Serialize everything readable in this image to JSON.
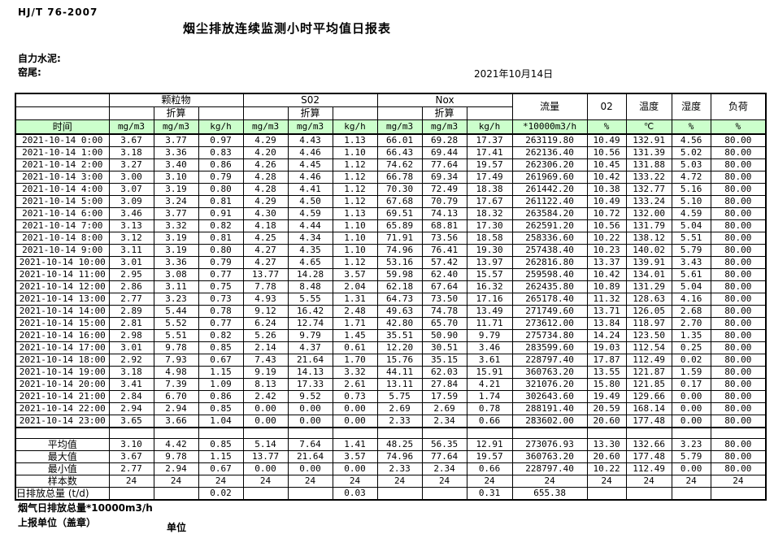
{
  "page": {
    "doc_code": "HJ/T  76-2007",
    "title": "烟尘排放连续监测小时平均值日报表",
    "company": "自力水泥:",
    "location": "窑尾:",
    "date": "2021年10月14日",
    "footer_total_label": "烟气日排放总量*10000m3/h",
    "footer_report_unit": "上报单位（盖章）",
    "footer_unit": "单位"
  },
  "colors": {
    "header_green": "#ccffcc"
  },
  "table": {
    "time_label": "时间",
    "groups": [
      "颗粒物",
      "S02",
      "Nox"
    ],
    "converted_label": "折算",
    "single_headers": [
      "流量",
      "02",
      "温度",
      "湿度",
      "负荷"
    ],
    "units": [
      "mg/m3",
      "mg/m3",
      "kg/h",
      "mg/m3",
      "mg/m3",
      "kg/h",
      "mg/m3",
      "mg/m3",
      "kg/h",
      "*10000m3/h",
      "%",
      "℃",
      "%",
      "%"
    ],
    "rows": [
      {
        "time": "2021-10-14 0:00",
        "values": [
          "3.67",
          "3.77",
          "0.97",
          "4.29",
          "4.43",
          "1.13",
          "66.01",
          "69.28",
          "17.37",
          "263119.80",
          "10.49",
          "132.91",
          "4.56",
          "80.00"
        ]
      },
      {
        "time": "2021-10-14 1:00",
        "values": [
          "3.18",
          "3.36",
          "0.83",
          "4.20",
          "4.46",
          "1.10",
          "66.43",
          "69.44",
          "17.41",
          "262136.40",
          "10.56",
          "131.39",
          "5.02",
          "80.00"
        ]
      },
      {
        "time": "2021-10-14 2:00",
        "values": [
          "3.27",
          "3.40",
          "0.86",
          "4.26",
          "4.45",
          "1.12",
          "74.62",
          "77.64",
          "19.57",
          "262306.20",
          "10.45",
          "131.88",
          "5.03",
          "80.00"
        ]
      },
      {
        "time": "2021-10-14 3:00",
        "values": [
          "3.00",
          "3.10",
          "0.79",
          "4.28",
          "4.46",
          "1.12",
          "66.78",
          "69.34",
          "17.49",
          "261969.60",
          "10.42",
          "133.22",
          "4.72",
          "80.00"
        ]
      },
      {
        "time": "2021-10-14 4:00",
        "values": [
          "3.07",
          "3.19",
          "0.80",
          "4.28",
          "4.41",
          "1.12",
          "70.30",
          "72.49",
          "18.38",
          "261442.20",
          "10.38",
          "132.77",
          "5.16",
          "80.00"
        ]
      },
      {
        "time": "2021-10-14 5:00",
        "values": [
          "3.09",
          "3.24",
          "0.81",
          "4.29",
          "4.50",
          "1.12",
          "67.68",
          "70.79",
          "17.67",
          "261122.40",
          "10.49",
          "133.24",
          "5.10",
          "80.00"
        ]
      },
      {
        "time": "2021-10-14 6:00",
        "values": [
          "3.46",
          "3.77",
          "0.91",
          "4.30",
          "4.59",
          "1.13",
          "69.51",
          "74.13",
          "18.32",
          "263584.20",
          "10.72",
          "132.00",
          "4.59",
          "80.00"
        ]
      },
      {
        "time": "2021-10-14 7:00",
        "values": [
          "3.13",
          "3.32",
          "0.82",
          "4.18",
          "4.44",
          "1.10",
          "65.89",
          "68.81",
          "17.30",
          "262591.20",
          "10.56",
          "131.79",
          "5.04",
          "80.00"
        ]
      },
      {
        "time": "2021-10-14 8:00",
        "values": [
          "3.12",
          "3.19",
          "0.81",
          "4.25",
          "4.34",
          "1.10",
          "71.91",
          "73.56",
          "18.58",
          "258336.60",
          "10.22",
          "138.12",
          "5.51",
          "80.00"
        ]
      },
      {
        "time": "2021-10-14 9:00",
        "values": [
          "3.11",
          "3.19",
          "0.80",
          "4.27",
          "4.35",
          "1.10",
          "74.96",
          "76.41",
          "19.30",
          "257438.40",
          "10.23",
          "140.02",
          "5.79",
          "80.00"
        ]
      },
      {
        "time": "2021-10-14 10:00",
        "values": [
          "3.01",
          "3.36",
          "0.79",
          "4.27",
          "4.65",
          "1.12",
          "53.16",
          "57.42",
          "13.97",
          "262816.80",
          "13.37",
          "139.91",
          "3.43",
          "80.00"
        ]
      },
      {
        "time": "2021-10-14 11:00",
        "values": [
          "2.95",
          "3.08",
          "0.77",
          "13.77",
          "14.28",
          "3.57",
          "59.98",
          "62.40",
          "15.57",
          "259598.40",
          "10.42",
          "134.01",
          "5.61",
          "80.00"
        ]
      },
      {
        "time": "2021-10-14 12:00",
        "values": [
          "2.86",
          "3.11",
          "0.75",
          "7.78",
          "8.48",
          "2.04",
          "62.18",
          "67.64",
          "16.32",
          "262435.80",
          "10.89",
          "131.29",
          "5.04",
          "80.00"
        ]
      },
      {
        "time": "2021-10-14 13:00",
        "values": [
          "2.77",
          "3.23",
          "0.73",
          "4.93",
          "5.55",
          "1.31",
          "64.73",
          "73.50",
          "17.16",
          "265178.40",
          "11.32",
          "128.63",
          "4.16",
          "80.00"
        ]
      },
      {
        "time": "2021-10-14 14:00",
        "values": [
          "2.89",
          "5.44",
          "0.78",
          "9.12",
          "16.42",
          "2.48",
          "49.63",
          "74.78",
          "13.49",
          "271749.60",
          "13.71",
          "126.05",
          "2.68",
          "80.00"
        ]
      },
      {
        "time": "2021-10-14 15:00",
        "values": [
          "2.81",
          "5.52",
          "0.77",
          "6.24",
          "12.74",
          "1.71",
          "42.80",
          "65.70",
          "11.71",
          "273612.00",
          "13.84",
          "118.97",
          "2.70",
          "80.00"
        ]
      },
      {
        "time": "2021-10-14 16:00",
        "values": [
          "2.98",
          "5.51",
          "0.82",
          "5.26",
          "9.79",
          "1.45",
          "35.51",
          "50.90",
          "9.79",
          "275734.80",
          "14.24",
          "123.50",
          "1.35",
          "80.00"
        ]
      },
      {
        "time": "2021-10-14 17:00",
        "values": [
          "3.01",
          "9.78",
          "0.85",
          "2.14",
          "4.37",
          "0.61",
          "12.20",
          "30.51",
          "3.46",
          "283599.60",
          "19.03",
          "112.54",
          "0.25",
          "80.00"
        ]
      },
      {
        "time": "2021-10-14 18:00",
        "values": [
          "2.92",
          "7.93",
          "0.67",
          "7.43",
          "21.64",
          "1.70",
          "15.76",
          "35.15",
          "3.61",
          "228797.40",
          "17.87",
          "112.49",
          "0.02",
          "80.00"
        ]
      },
      {
        "time": "2021-10-14 19:00",
        "values": [
          "3.18",
          "4.98",
          "1.15",
          "9.19",
          "14.13",
          "3.32",
          "44.11",
          "62.03",
          "15.91",
          "360763.20",
          "13.55",
          "121.87",
          "1.59",
          "80.00"
        ]
      },
      {
        "time": "2021-10-14 20:00",
        "values": [
          "3.41",
          "7.39",
          "1.09",
          "8.13",
          "17.33",
          "2.61",
          "13.11",
          "27.84",
          "4.21",
          "321076.20",
          "15.80",
          "121.85",
          "0.17",
          "80.00"
        ]
      },
      {
        "time": "2021-10-14 21:00",
        "values": [
          "2.84",
          "6.70",
          "0.86",
          "2.42",
          "9.52",
          "0.73",
          "5.75",
          "17.59",
          "1.74",
          "302643.60",
          "19.49",
          "129.66",
          "0.00",
          "80.00"
        ]
      },
      {
        "time": "2021-10-14 22:00",
        "values": [
          "2.94",
          "2.94",
          "0.85",
          "0.00",
          "0.00",
          "0.00",
          "2.69",
          "2.69",
          "0.78",
          "288191.40",
          "20.59",
          "168.14",
          "0.00",
          "80.00"
        ]
      },
      {
        "time": "2021-10-14 23:00",
        "values": [
          "3.65",
          "3.66",
          "1.04",
          "0.00",
          "0.00",
          "0.00",
          "2.33",
          "2.34",
          "0.66",
          "283602.00",
          "20.60",
          "177.48",
          "0.00",
          "80.00"
        ]
      }
    ],
    "summary": [
      {
        "label": "平均值",
        "values": [
          "3.10",
          "4.42",
          "0.85",
          "5.14",
          "7.64",
          "1.41",
          "48.25",
          "56.35",
          "12.91",
          "273076.93",
          "13.30",
          "132.66",
          "3.23",
          "80.00"
        ]
      },
      {
        "label": "最大值",
        "values": [
          "3.67",
          "9.78",
          "1.15",
          "13.77",
          "21.64",
          "3.57",
          "74.96",
          "77.64",
          "19.57",
          "360763.20",
          "20.60",
          "177.48",
          "5.79",
          "80.00"
        ]
      },
      {
        "label": "最小值",
        "values": [
          "2.77",
          "2.94",
          "0.67",
          "0.00",
          "0.00",
          "0.00",
          "2.33",
          "2.34",
          "0.66",
          "228797.40",
          "10.22",
          "112.49",
          "0.00",
          "80.00"
        ]
      },
      {
        "label": "样本数",
        "values": [
          "24",
          "24",
          "24",
          "24",
          "24",
          "24",
          "24",
          "24",
          "24",
          "24",
          "24",
          "24",
          "24",
          "24"
        ]
      },
      {
        "label": "日排放总量 (t/d)",
        "values": [
          "",
          "",
          "0.02",
          "",
          "",
          "0.03",
          "",
          "",
          "0.31",
          "655.38",
          "",
          "",
          "",
          ""
        ]
      }
    ]
  }
}
